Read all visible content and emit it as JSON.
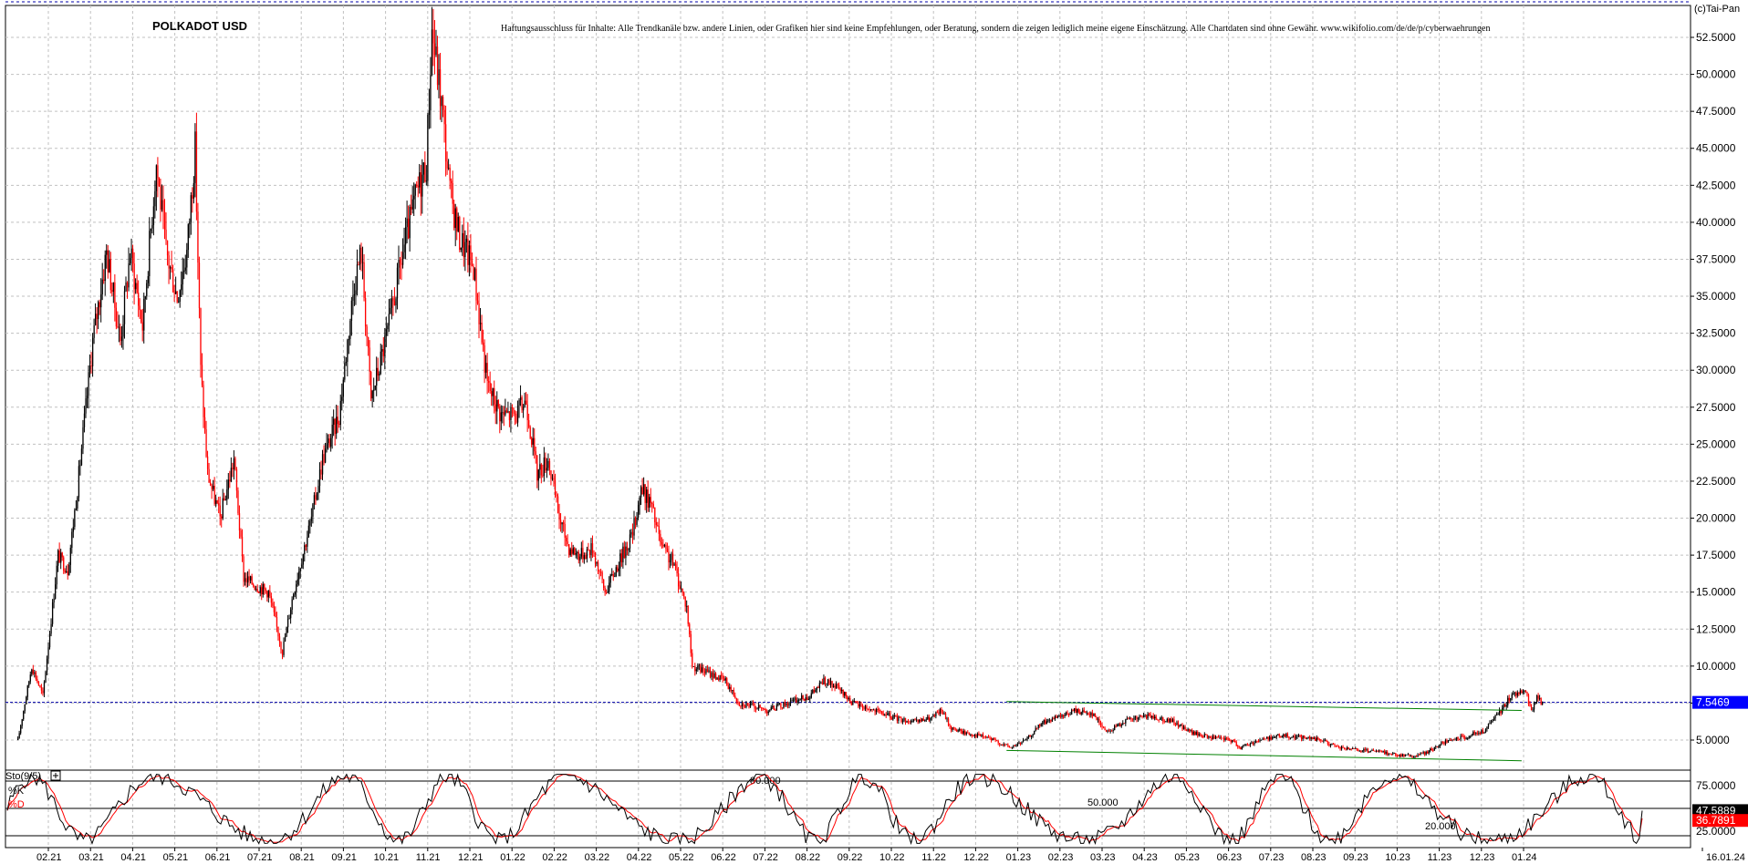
{
  "header": {
    "title": "POLKADOT USD",
    "disclaimer": "Haftungsausschluss für Inhalte: Alle Trendkanäle bzw. andere Linien, oder Grafiken hier sind keine Empfehlungen, oder Beratung, sondern die zeigen lediglich meine eigene Einschätzung. Alle Chartdaten sind ohne Gewähr.  www.wikifolio.com/de/de/p/cyberwaehrungen",
    "copyright": "(c)Tai-Pan"
  },
  "colors": {
    "up_candle": "#000000",
    "down_candle": "#ff0000",
    "grid": "#c0c0c0",
    "trendline": "#008000",
    "current_price_line": "#0000aa",
    "current_price_box": "#0000ff",
    "stoch_k": "#000000",
    "stoch_d": "#ff0000",
    "stoch_d_box": "#ff0000"
  },
  "chart_data": [
    {
      "type": "candlestick",
      "ylim": [
        3.5,
        54.0
      ],
      "y_ticks": [
        "5.0000",
        "7.5000",
        "10.0000",
        "12.5000",
        "15.0000",
        "17.5000",
        "20.0000",
        "22.5000",
        "25.0000",
        "27.5000",
        "30.0000",
        "32.5000",
        "35.0000",
        "37.5000",
        "40.0000",
        "42.5000",
        "45.0000",
        "47.5000",
        "50.0000",
        "52.5000"
      ],
      "x_ticks": [
        "02.21",
        "03.21",
        "04.21",
        "05.21",
        "06.21",
        "07.21",
        "08.21",
        "09.21",
        "10.21",
        "11.21",
        "12.21",
        "01.22",
        "02.22",
        "03.22",
        "04.22",
        "05.22",
        "06.22",
        "07.22",
        "08.22",
        "09.22",
        "10.22",
        "11.22",
        "12.22",
        "01.23",
        "02.23",
        "03.23",
        "04.23",
        "05.23",
        "06.23",
        "07.23",
        "08.23",
        "09.23",
        "10.23",
        "11.23",
        "12.23",
        "01.24",
        "16.01.24"
      ],
      "price_path": [
        [
          "2021-01-10",
          5.0
        ],
        [
          "2021-01-20",
          10.0
        ],
        [
          "2021-01-28",
          8.0
        ],
        [
          "2021-02-08",
          17.5
        ],
        [
          "2021-02-15",
          16.5
        ],
        [
          "2021-02-22",
          22.0
        ],
        [
          "2021-03-05",
          32.0
        ],
        [
          "2021-03-15",
          38.0
        ],
        [
          "2021-03-25",
          32.0
        ],
        [
          "2021-04-01",
          38.0
        ],
        [
          "2021-04-10",
          33.0
        ],
        [
          "2021-04-20",
          44.0
        ],
        [
          "2021-04-27",
          38.0
        ],
        [
          "2021-05-05",
          35.0
        ],
        [
          "2021-05-12",
          38.0
        ],
        [
          "2021-05-18",
          45.0
        ],
        [
          "2021-05-22",
          30.0
        ],
        [
          "2021-05-27",
          23.0
        ],
        [
          "2021-06-05",
          20.0
        ],
        [
          "2021-06-15",
          24.0
        ],
        [
          "2021-06-22",
          16.0
        ],
        [
          "2021-06-30",
          15.5
        ],
        [
          "2021-07-10",
          15.0
        ],
        [
          "2021-07-20",
          11.0
        ],
        [
          "2021-07-28",
          15.0
        ],
        [
          "2021-08-10",
          20.0
        ],
        [
          "2021-08-18",
          24.0
        ],
        [
          "2021-08-30",
          27.0
        ],
        [
          "2021-09-10",
          36.0
        ],
        [
          "2021-09-15",
          38.0
        ],
        [
          "2021-09-22",
          28.0
        ],
        [
          "2021-10-05",
          33.0
        ],
        [
          "2021-10-15",
          38.0
        ],
        [
          "2021-10-25",
          42.0
        ],
        [
          "2021-11-01",
          44.0
        ],
        [
          "2021-11-05",
          53.0
        ],
        [
          "2021-11-12",
          48.0
        ],
        [
          "2021-11-18",
          42.0
        ],
        [
          "2021-11-25",
          39.0
        ],
        [
          "2021-12-05",
          37.0
        ],
        [
          "2021-12-15",
          29.0
        ],
        [
          "2021-12-25",
          27.0
        ],
        [
          "2022-01-05",
          27.0
        ],
        [
          "2022-01-12",
          28.0
        ],
        [
          "2022-01-20",
          23.0
        ],
        [
          "2022-01-28",
          24.0
        ],
        [
          "2022-02-05",
          20.0
        ],
        [
          "2022-02-12",
          18.0
        ],
        [
          "2022-02-20",
          17.5
        ],
        [
          "2022-03-01",
          18.0
        ],
        [
          "2022-03-10",
          15.0
        ],
        [
          "2022-03-20",
          17.0
        ],
        [
          "2022-03-30",
          19.0
        ],
        [
          "2022-04-05",
          22.0
        ],
        [
          "2022-04-12",
          21.0
        ],
        [
          "2022-04-20",
          18.0
        ],
        [
          "2022-04-28",
          17.0
        ],
        [
          "2022-05-08",
          14.0
        ],
        [
          "2022-05-12",
          10.0
        ],
        [
          "2022-05-25",
          9.5
        ],
        [
          "2022-06-05",
          9.0
        ],
        [
          "2022-06-15",
          7.5
        ],
        [
          "2022-06-25",
          7.3
        ],
        [
          "2022-07-05",
          7.0
        ],
        [
          "2022-07-20",
          7.5
        ],
        [
          "2022-08-05",
          8.0
        ],
        [
          "2022-08-15",
          9.0
        ],
        [
          "2022-08-25",
          8.5
        ],
        [
          "2022-09-05",
          7.5
        ],
        [
          "2022-09-20",
          7.0
        ],
        [
          "2022-10-05",
          6.5
        ],
        [
          "2022-10-20",
          6.2
        ],
        [
          "2022-11-01",
          6.5
        ],
        [
          "2022-11-08",
          7.0
        ],
        [
          "2022-11-15",
          5.8
        ],
        [
          "2022-11-25",
          5.5
        ],
        [
          "2022-12-10",
          5.2
        ],
        [
          "2022-12-28",
          4.5
        ],
        [
          "2023-01-08",
          5.0
        ],
        [
          "2023-01-20",
          6.2
        ],
        [
          "2023-02-01",
          6.5
        ],
        [
          "2023-02-12",
          7.0
        ],
        [
          "2023-02-25",
          6.8
        ],
        [
          "2023-03-08",
          5.5
        ],
        [
          "2023-03-20",
          6.3
        ],
        [
          "2023-04-05",
          6.6
        ],
        [
          "2023-04-15",
          6.5
        ],
        [
          "2023-04-25",
          6.2
        ],
        [
          "2023-05-08",
          5.5
        ],
        [
          "2023-05-20",
          5.2
        ],
        [
          "2023-06-05",
          5.0
        ],
        [
          "2023-06-12",
          4.5
        ],
        [
          "2023-06-25",
          5.0
        ],
        [
          "2023-07-10",
          5.3
        ],
        [
          "2023-07-25",
          5.2
        ],
        [
          "2023-08-10",
          5.0
        ],
        [
          "2023-08-20",
          4.5
        ],
        [
          "2023-09-05",
          4.3
        ],
        [
          "2023-09-20",
          4.2
        ],
        [
          "2023-10-05",
          4.0
        ],
        [
          "2023-10-15",
          3.9
        ],
        [
          "2023-10-25",
          4.2
        ],
        [
          "2023-11-05",
          4.8
        ],
        [
          "2023-11-20",
          5.2
        ],
        [
          "2023-12-05",
          5.6
        ],
        [
          "2023-12-15",
          6.8
        ],
        [
          "2023-12-25",
          8.0
        ],
        [
          "2024-01-03",
          8.5
        ],
        [
          "2024-01-08",
          7.0
        ],
        [
          "2024-01-12",
          7.8
        ],
        [
          "2024-01-16",
          7.55
        ]
      ],
      "trendlines": [
        {
          "from": [
            "2022-12-25",
            7.6
          ],
          "to": [
            "2024-01-01",
            7.0
          ]
        },
        {
          "from": [
            "2022-12-25",
            4.3
          ],
          "to": [
            "2024-01-01",
            3.6
          ]
        }
      ],
      "current_price": 7.5469,
      "current_price_label": "7.5469"
    },
    {
      "type": "line",
      "indicator": "Sto(9/5)",
      "series": [
        {
          "name": "%K",
          "color": "#000000"
        },
        {
          "name": "%D",
          "color": "#ff0000"
        }
      ],
      "ylim": [
        0,
        100
      ],
      "y_ticks": [
        "25.0000",
        "50.0000",
        "75.0000"
      ],
      "levels": [
        {
          "value": 80,
          "label": "80.000"
        },
        {
          "value": 50,
          "label": "50.000"
        },
        {
          "value": 20,
          "label": "20.000"
        }
      ],
      "k_value": 47.5889,
      "k_label": "47.5889",
      "d_value": 36.7891,
      "d_label": "36.7891"
    }
  ]
}
